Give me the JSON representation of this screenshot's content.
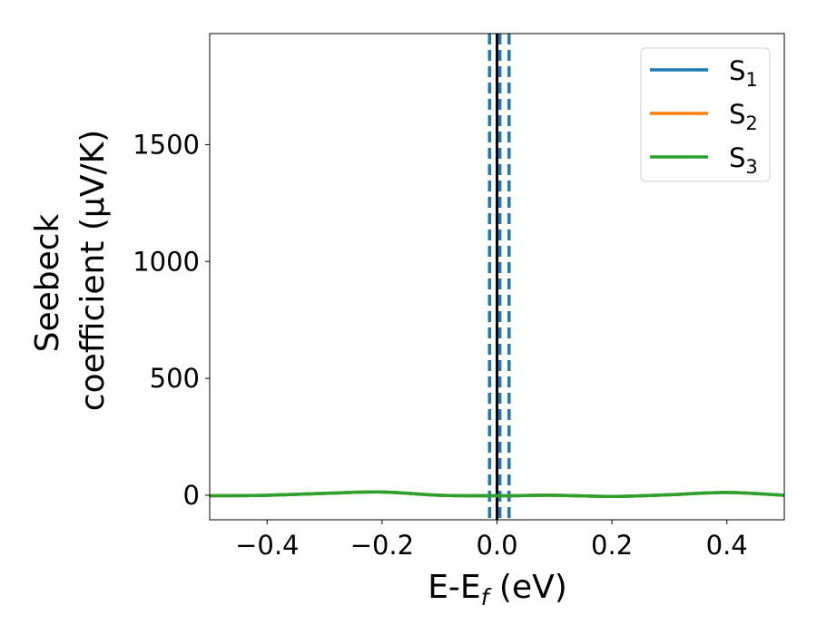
{
  "chart_data": {
    "type": "line",
    "xlabel": {
      "main": "E-E",
      "sub": "f",
      "unit": " (eV)"
    },
    "ylabel": {
      "line1": "Seebeck",
      "line2": "coefficient  (μV/K)"
    },
    "xlim": [
      -0.5,
      0.5
    ],
    "ylim": [
      -105,
      1975
    ],
    "xticks": [
      -0.4,
      -0.2,
      0.0,
      0.2,
      0.4
    ],
    "xtick_labels": [
      "−0.4",
      "−0.2",
      "0.0",
      "0.2",
      "0.4"
    ],
    "yticks": [
      0,
      500,
      1000,
      1500
    ],
    "ytick_labels": [
      "0",
      "500",
      "1000",
      "1500"
    ],
    "grid": false,
    "legend_position": "top-right",
    "series": [
      {
        "name": "S",
        "sub": "1",
        "color": "#1f77b4",
        "x": [
          -0.5,
          -0.4,
          -0.3,
          -0.2,
          -0.1,
          0.0,
          0.1,
          0.2,
          0.3,
          0.4,
          0.5
        ],
        "y": [
          -2,
          0,
          8,
          14,
          0,
          -2,
          0,
          -5,
          2,
          12,
          0
        ]
      },
      {
        "name": "S",
        "sub": "2",
        "color": "#ff7f0e",
        "x": [
          -0.5,
          -0.4,
          -0.3,
          -0.2,
          -0.1,
          0.0,
          0.1,
          0.2,
          0.3,
          0.4,
          0.5
        ],
        "y": [
          -2,
          0,
          8,
          14,
          0,
          -2,
          0,
          -5,
          2,
          12,
          0
        ]
      },
      {
        "name": "S",
        "sub": "3",
        "color": "#2ca02c",
        "x": [
          -0.5,
          -0.4,
          -0.3,
          -0.2,
          -0.1,
          0.0,
          0.1,
          0.2,
          0.3,
          0.4,
          0.5
        ],
        "y": [
          -2,
          0,
          8,
          14,
          0,
          -2,
          0,
          -5,
          2,
          12,
          0
        ]
      }
    ],
    "vertical_lines": [
      {
        "x": 0.0,
        "color": "#000000",
        "style": "solid"
      },
      {
        "x": -0.013,
        "color": "#1f77b4",
        "style": "dashed"
      },
      {
        "x": 0.005,
        "color": "#1f77b4",
        "style": "dashed"
      },
      {
        "x": 0.021,
        "color": "#1f77b4",
        "style": "dashed"
      }
    ]
  }
}
